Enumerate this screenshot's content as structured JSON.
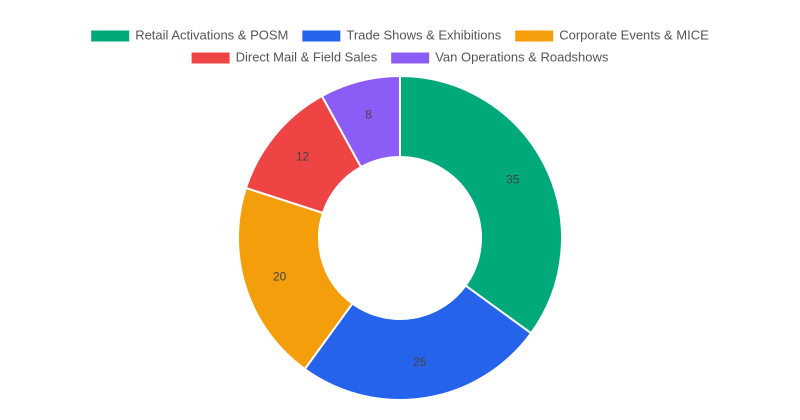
{
  "chart_data": {
    "type": "doughnut",
    "categories": [
      "Retail Activations & POSM",
      "Trade Shows & Exhibitions",
      "Corporate Events & MICE",
      "Direct Mail & Field Sales",
      "Van Operations & Roadshows"
    ],
    "values": [
      35,
      25,
      20,
      12,
      8
    ],
    "colors": [
      "#00a97a",
      "#2563eb",
      "#f59e0b",
      "#ef4444",
      "#8b5cf6"
    ],
    "legend": "top"
  }
}
